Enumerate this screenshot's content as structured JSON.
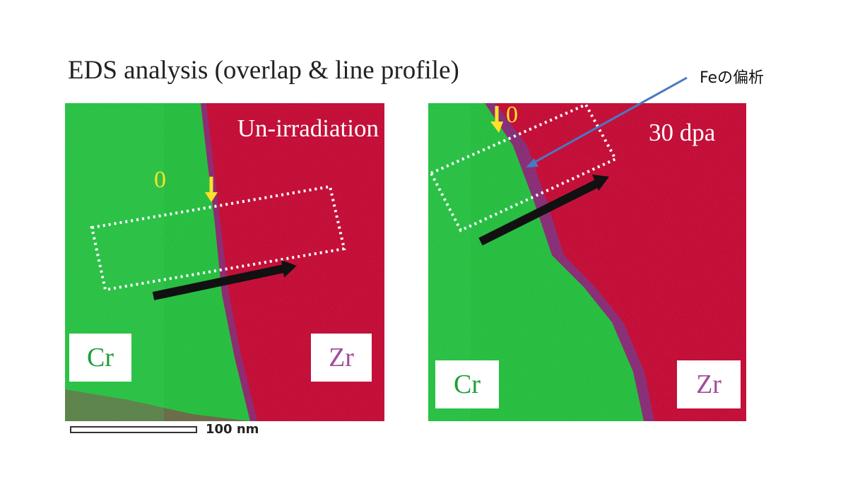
{
  "title": "EDS analysis (overlap & line profile)",
  "annotation": "Feの偏析",
  "panels": [
    {
      "condition": "Un-irradiation",
      "zero_marker": "0",
      "left_element": "Cr",
      "right_element": "Zr"
    },
    {
      "condition": "30 dpa",
      "zero_marker": "0",
      "left_element": "Cr",
      "right_element": "Zr"
    }
  ],
  "scale_bar": {
    "label": "100 nm"
  },
  "colors": {
    "cr_green": "#2ecf49",
    "zr_red": "#d5143f",
    "cr_label": "#1f9e3a",
    "zr_label": "#a24d9a",
    "marker_yellow": "#ffe12a",
    "annotation_arrow": "#4a78c2"
  }
}
